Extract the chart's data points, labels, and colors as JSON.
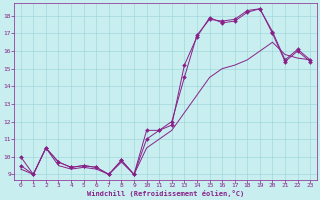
{
  "xlabel": "Windchill (Refroidissement éolien,°C)",
  "background_color": "#c8eef0",
  "grid_color": "#a0d8dc",
  "line_color": "#882288",
  "xlim": [
    -0.5,
    23.5
  ],
  "ylim": [
    8.7,
    18.7
  ],
  "yticks": [
    9,
    10,
    11,
    12,
    13,
    14,
    15,
    16,
    17,
    18
  ],
  "xticks": [
    0,
    1,
    2,
    3,
    4,
    5,
    6,
    7,
    8,
    9,
    10,
    11,
    12,
    13,
    14,
    15,
    16,
    17,
    18,
    19,
    20,
    21,
    22,
    23
  ],
  "series1_x": [
    0,
    1,
    2,
    3,
    4,
    5,
    6,
    7,
    8,
    9,
    10,
    11,
    12,
    13,
    14,
    15,
    16,
    17,
    18,
    19,
    20,
    21,
    22,
    23
  ],
  "series1_y": [
    10.0,
    9.0,
    10.5,
    9.7,
    9.4,
    9.5,
    9.4,
    9.0,
    9.8,
    9.0,
    11.5,
    11.5,
    12.0,
    14.5,
    16.9,
    17.8,
    17.7,
    17.8,
    18.3,
    18.4,
    17.1,
    15.5,
    16.1,
    15.5
  ],
  "series2_x": [
    0,
    1,
    2,
    3,
    4,
    5,
    6,
    7,
    8,
    9,
    10,
    11,
    12,
    13,
    14,
    15,
    16,
    17,
    18,
    19,
    20,
    21,
    22,
    23
  ],
  "series2_y": [
    9.5,
    9.0,
    10.5,
    9.7,
    9.4,
    9.5,
    9.4,
    9.0,
    9.8,
    9.0,
    11.0,
    11.5,
    11.8,
    15.2,
    16.8,
    17.9,
    17.6,
    17.7,
    18.2,
    18.4,
    17.0,
    15.4,
    16.0,
    15.4
  ],
  "series3_x": [
    0,
    1,
    2,
    3,
    4,
    5,
    6,
    7,
    8,
    9,
    10,
    11,
    12,
    13,
    14,
    15,
    16,
    17,
    18,
    19,
    20,
    21,
    22,
    23
  ],
  "series3_y": [
    9.3,
    9.0,
    10.5,
    9.5,
    9.3,
    9.4,
    9.3,
    9.0,
    9.7,
    9.0,
    10.5,
    11.0,
    11.5,
    12.5,
    13.5,
    14.5,
    15.0,
    15.2,
    15.5,
    16.0,
    16.5,
    15.8,
    15.6,
    15.5
  ]
}
